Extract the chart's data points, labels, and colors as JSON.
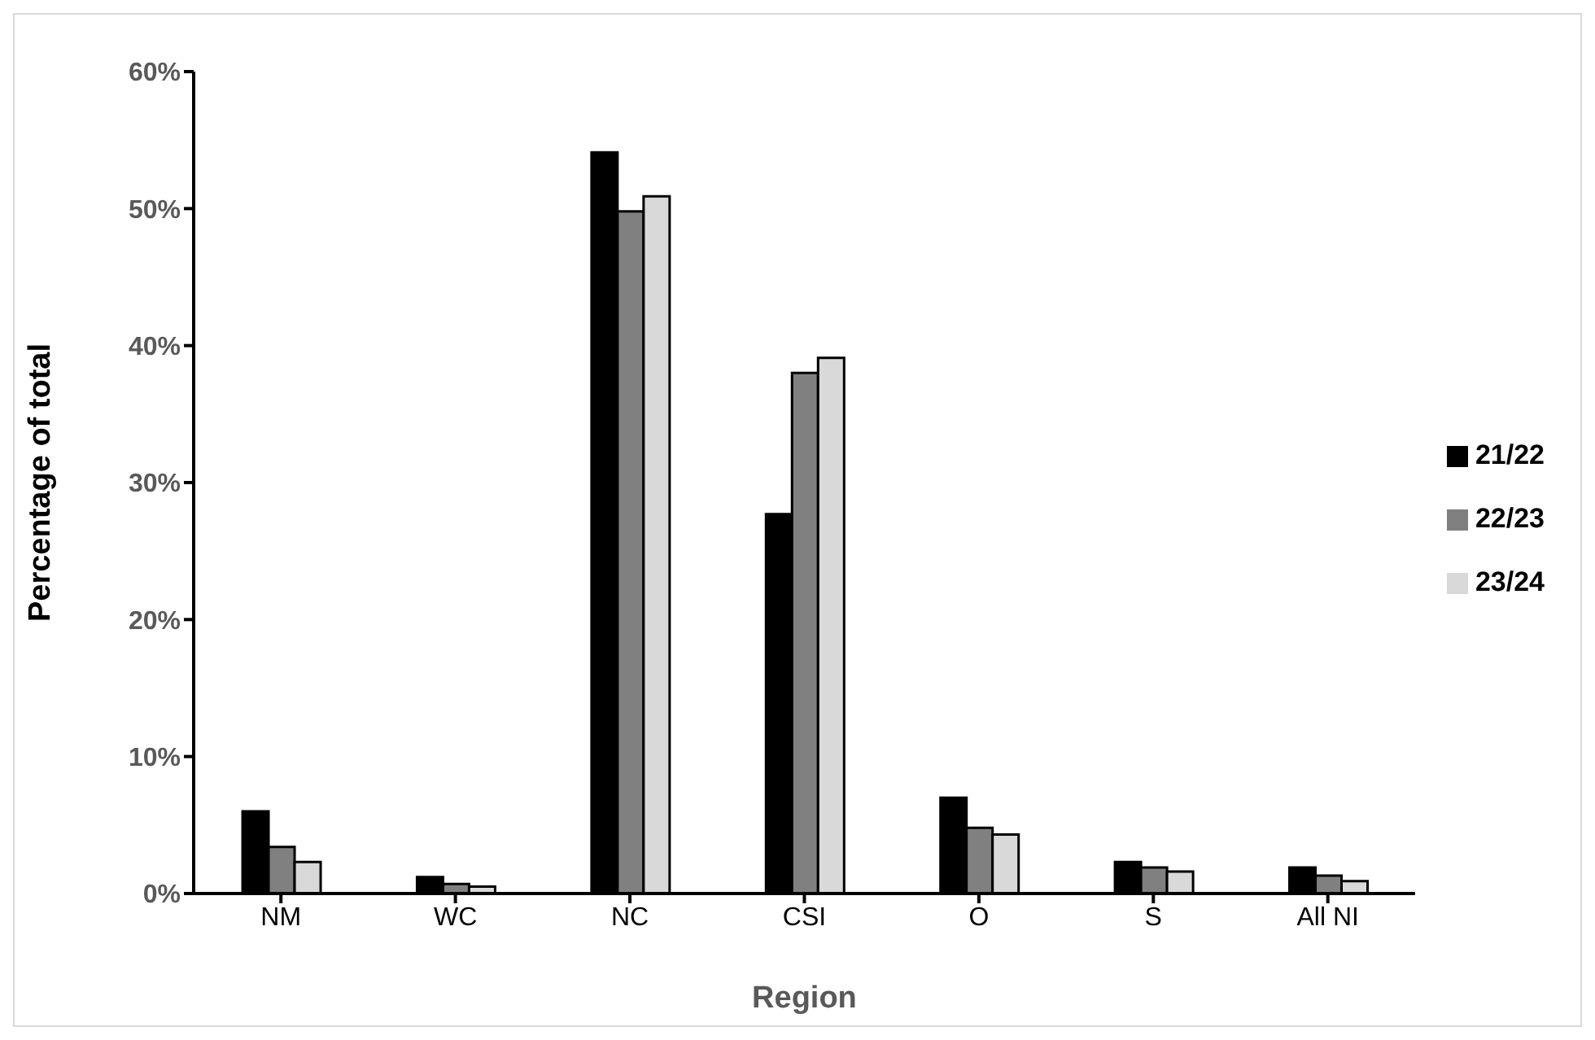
{
  "chart_data": {
    "type": "bar",
    "xlabel": "Region",
    "ylabel": "Percentage of total",
    "categories": [
      "NM",
      "WC",
      "NC",
      "CSI",
      "O",
      "S",
      "All NI"
    ],
    "series": [
      {
        "name": "21/22",
        "color": "#000000",
        "values": [
          6.0,
          1.2,
          54.1,
          27.7,
          7.0,
          2.3,
          1.9
        ]
      },
      {
        "name": "22/23",
        "color": "#808080",
        "values": [
          3.4,
          0.7,
          49.8,
          38.0,
          4.8,
          1.9,
          1.3
        ]
      },
      {
        "name": "23/24",
        "color": "#d9d9d9",
        "values": [
          2.3,
          0.5,
          50.9,
          39.1,
          4.3,
          1.6,
          0.9
        ]
      }
    ],
    "ylim": [
      0,
      60
    ],
    "yticks": [
      {
        "value": 0,
        "label": "0%"
      },
      {
        "value": 10,
        "label": "10%"
      },
      {
        "value": 20,
        "label": "20%"
      },
      {
        "value": 30,
        "label": "30%"
      },
      {
        "value": 40,
        "label": "40%"
      },
      {
        "value": 50,
        "label": "50%"
      },
      {
        "value": 60,
        "label": "60%"
      }
    ],
    "grid": false,
    "legend": "right"
  }
}
